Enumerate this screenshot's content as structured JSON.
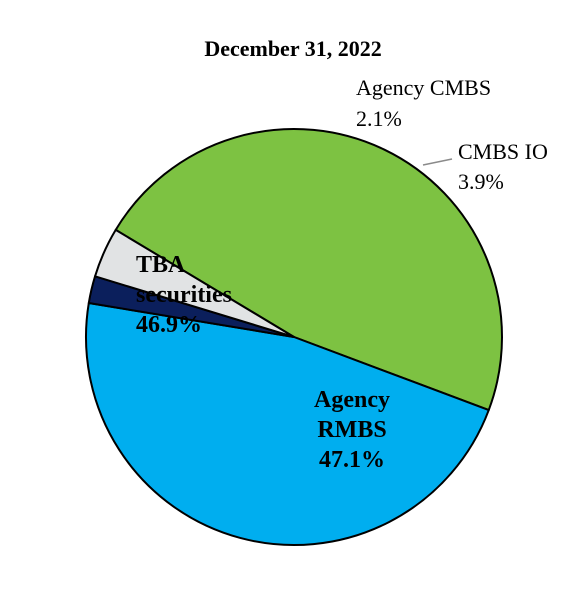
{
  "chart_data": {
    "type": "pie",
    "title": "December 31, 2022",
    "slices": [
      {
        "label_lines": [
          "Agency",
          "RMBS"
        ],
        "value": 47.1,
        "value_text": "47.1%",
        "color": "#7DC242"
      },
      {
        "label_lines": [
          "TBA",
          "securities"
        ],
        "value": 46.9,
        "value_text": "46.9%",
        "color": "#00AEEF"
      },
      {
        "label_lines": [
          "Agency CMBS"
        ],
        "value": 2.1,
        "value_text": "2.1%",
        "color": "#0B1F5C"
      },
      {
        "label_lines": [
          "CMBS IO"
        ],
        "value": 3.9,
        "value_text": "3.9%",
        "color": "#E1E3E4"
      }
    ],
    "legend": "none",
    "grid": false
  }
}
